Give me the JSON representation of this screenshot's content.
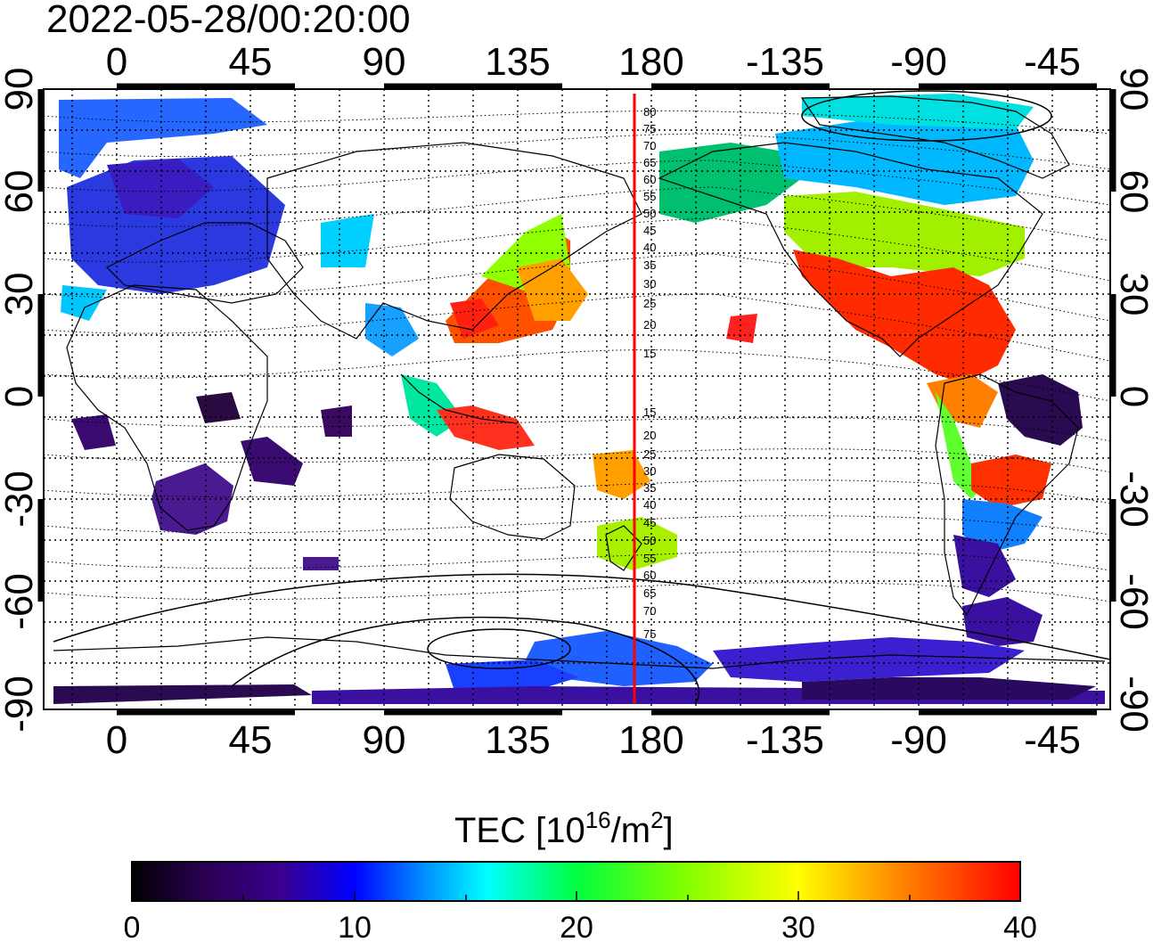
{
  "title": "2022-05-28/00:20:00",
  "map": {
    "lon_ticks_top": [
      "0",
      "45",
      "90",
      "135",
      "180",
      "-135",
      "-90",
      "-45"
    ],
    "lon_ticks_bottom": [
      "0",
      "45",
      "90",
      "135",
      "180",
      "-135",
      "-90",
      "-45"
    ],
    "lat_ticks_left": [
      "90",
      "60",
      "30",
      "0",
      "-30",
      "-60",
      "-90"
    ],
    "lat_ticks_right": [
      "90",
      "60",
      "30",
      "0",
      "-30",
      "-60",
      "-90"
    ],
    "lon_values": [
      0,
      45,
      90,
      135,
      180,
      225,
      270,
      315
    ],
    "lat_values": [
      90,
      60,
      30,
      0,
      -30,
      -60,
      -90
    ],
    "terminator_longitude": 175,
    "terminator_color": "#ff0000",
    "solar_zenith_labels_north": [
      "80",
      "75",
      "70",
      "65",
      "60",
      "55",
      "50",
      "45",
      "40",
      "35",
      "30",
      "25",
      "20",
      "15"
    ],
    "solar_zenith_labels_south": [
      "15",
      "20",
      "25",
      "30",
      "35",
      "40",
      "45",
      "50",
      "55",
      "60",
      "65",
      "70",
      "75"
    ]
  },
  "colorbar": {
    "label_main": "TEC  [10",
    "label_sup": "16",
    "label_mid": "/m",
    "label_sup2": "2",
    "label_end": "]",
    "ticks": [
      "0",
      "10",
      "20",
      "30",
      "40"
    ],
    "min": 0,
    "max": 40,
    "colors": [
      "#000000",
      "#2a0050",
      "#3a0090",
      "#0000ff",
      "#0090ff",
      "#00ffff",
      "#00ff40",
      "#80ff00",
      "#ffff00",
      "#ff8000",
      "#ff0000"
    ]
  }
}
